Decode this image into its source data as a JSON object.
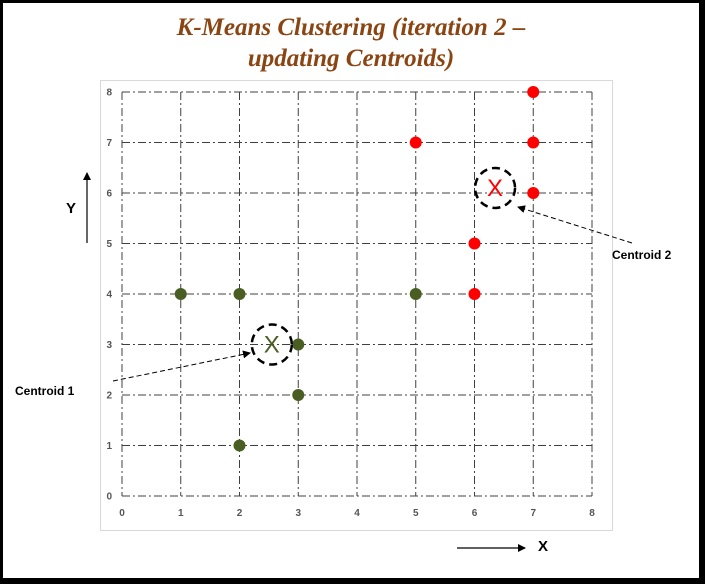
{
  "title_line1": "K-Means Clustering (iteration 2 –",
  "title_line2": "updating Centroids)",
  "y_axis_letter": "Y",
  "x_axis_letter": "X",
  "centroid1_label": "Centroid 1",
  "centroid2_label": "Centroid 2",
  "centroid_marker": "X",
  "colors": {
    "cluster1": "#4a5e23",
    "cluster2": "#ff0000",
    "title": "#8B4513"
  },
  "chart_data": {
    "type": "scatter",
    "title": "K-Means Clustering (iteration 2 – updating Centroids)",
    "xlim": [
      0,
      8
    ],
    "ylim": [
      0,
      8
    ],
    "xticks": [
      0,
      1,
      2,
      3,
      4,
      5,
      6,
      7,
      8
    ],
    "yticks": [
      0,
      1,
      2,
      3,
      4,
      5,
      6,
      7,
      8
    ],
    "grid": true,
    "series": [
      {
        "color": "#4a5e23",
        "points": [
          [
            1,
            4
          ],
          [
            2,
            4
          ],
          [
            5,
            4
          ],
          [
            3,
            3
          ],
          [
            3,
            2
          ],
          [
            2,
            1
          ]
        ]
      },
      {
        "color": "#ff0000",
        "points": [
          [
            7,
            8
          ],
          [
            5,
            7
          ],
          [
            7,
            7
          ],
          [
            7,
            6
          ],
          [
            6,
            5
          ],
          [
            6,
            4
          ]
        ]
      }
    ],
    "centroids": [
      {
        "label": "Centroid 1",
        "x": 2.55,
        "y": 3.0,
        "color": "#4a5e23"
      },
      {
        "label": "Centroid 2",
        "x": 6.35,
        "y": 6.1,
        "color": "#ff0000"
      }
    ]
  }
}
